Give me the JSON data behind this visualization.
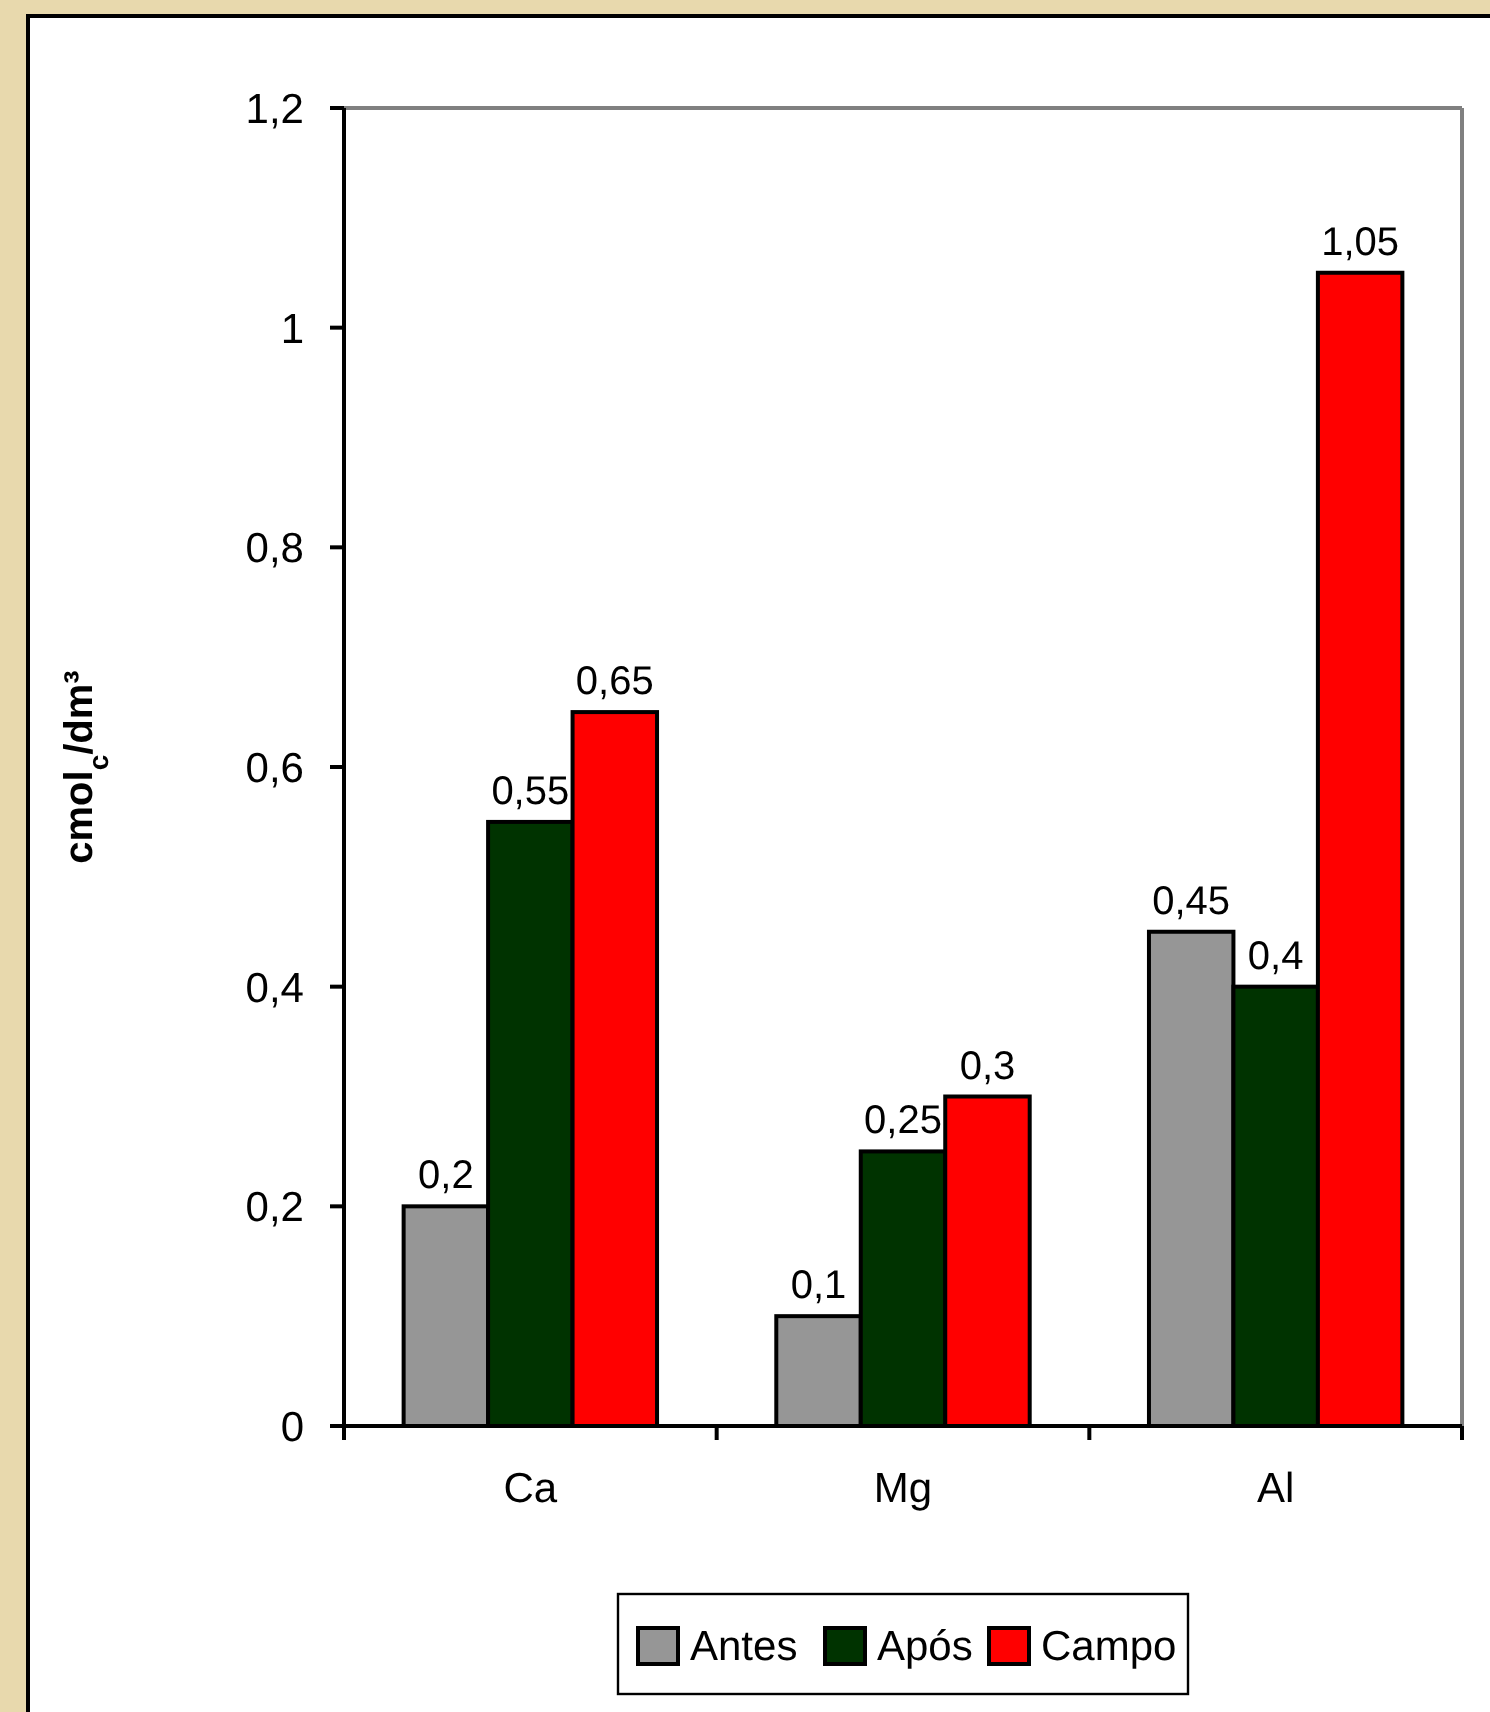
{
  "chart_data": {
    "type": "bar",
    "categories": [
      "Ca",
      "Mg",
      "Al"
    ],
    "ylabel": "cmol$_{c}$/dm³",
    "series": [
      {
        "name": "Antes",
        "color": "#969696",
        "values": [
          0.2,
          0.1,
          0.45
        ],
        "value_labels": [
          "0,2",
          "0,1",
          "0,45"
        ]
      },
      {
        "name": "Após",
        "color": "#003300",
        "values": [
          0.55,
          0.25,
          0.4
        ],
        "value_labels": [
          "0,55",
          "0,25",
          "0,4"
        ]
      },
      {
        "name": "Campo",
        "color": "#ff0000",
        "values": [
          0.65,
          0.3,
          1.05
        ],
        "value_labels": [
          "0,65",
          "0,3",
          "1,05"
        ]
      }
    ],
    "ylim": [
      0,
      1.2
    ],
    "yticks": [
      0,
      {
        "value": 0.2,
        "label": "0,2"
      },
      {
        "value": 0.4,
        "label": "0,4"
      },
      {
        "value": 0.6,
        "label": "0,6"
      },
      {
        "value": 0.8,
        "label": "0,8"
      },
      1,
      {
        "value": 1.2,
        "label": "1,2"
      }
    ],
    "grid": false,
    "legend": "bottom"
  }
}
